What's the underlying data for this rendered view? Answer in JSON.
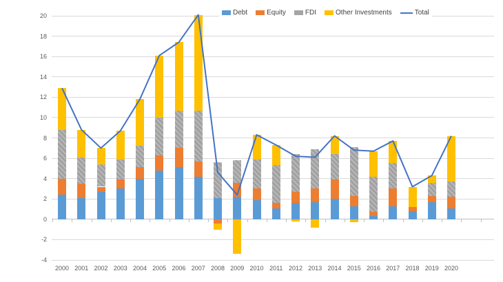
{
  "chart_data": {
    "type": "bar",
    "subtype": "stacked-column-with-line",
    "title": "",
    "xlabel": "",
    "ylabel": "",
    "categories": [
      "2000",
      "2001",
      "2002",
      "2003",
      "2004",
      "2005",
      "2006",
      "2007",
      "2008",
      "2009",
      "2010",
      "2011",
      "2012",
      "2013",
      "2014",
      "2015",
      "2016",
      "2017",
      "2018",
      "2019",
      "2020"
    ],
    "series": [
      {
        "name": "Debt",
        "type": "bar",
        "color": "#5B9BD5",
        "patterned": false,
        "values": [
          2.4,
          2.1,
          2.7,
          3.0,
          4.0,
          4.8,
          5.1,
          4.2,
          2.1,
          2.2,
          1.9,
          1.1,
          1.6,
          1.7,
          2.0,
          1.3,
          0.3,
          1.3,
          0.8,
          1.7,
          1.1
        ]
      },
      {
        "name": "Equity",
        "type": "bar",
        "color": "#ED7D31",
        "patterned": false,
        "values": [
          1.6,
          1.4,
          0.5,
          0.9,
          1.1,
          1.5,
          1.9,
          1.5,
          -0.4,
          1.4,
          1.1,
          0.5,
          1.1,
          1.3,
          1.9,
          1.0,
          0.4,
          1.7,
          0.4,
          0.6,
          1.1
        ]
      },
      {
        "name": "FDI",
        "type": "bar",
        "color": "#A5A5A5",
        "patterned": true,
        "values": [
          4.8,
          2.6,
          2.2,
          2.0,
          2.1,
          3.7,
          3.7,
          5.0,
          3.5,
          2.2,
          2.9,
          3.7,
          3.7,
          3.9,
          2.5,
          4.8,
          3.5,
          2.5,
          0.0,
          1.3,
          1.5
        ]
      },
      {
        "name": "Other Investments",
        "type": "bar",
        "color": "#FFC000",
        "patterned": false,
        "values": [
          4.1,
          2.7,
          1.6,
          2.8,
          4.6,
          6.1,
          6.7,
          9.4,
          -0.6,
          -3.4,
          2.4,
          2.0,
          -0.2,
          -0.8,
          1.8,
          -0.3,
          2.5,
          2.2,
          2.0,
          0.7,
          4.5
        ]
      },
      {
        "name": "Total",
        "type": "line",
        "color": "#4472C4",
        "values": [
          12.9,
          8.8,
          7.0,
          8.7,
          11.8,
          16.1,
          17.4,
          20.1,
          4.6,
          2.4,
          8.3,
          7.3,
          6.2,
          6.1,
          8.2,
          6.8,
          6.7,
          7.7,
          3.2,
          4.3,
          8.2
        ]
      }
    ],
    "ylim": [
      -4,
      20
    ],
    "yticks": [
      -4,
      -2,
      0,
      2,
      4,
      6,
      8,
      10,
      12,
      14,
      16,
      18,
      20
    ],
    "grid": true,
    "legend_position": "top",
    "colors": {
      "gridline": "#d9d9d9",
      "axis_line": "#bfbfbf",
      "tick_label": "#595959",
      "legend_text": "#404040",
      "background": "#ffffff"
    }
  }
}
